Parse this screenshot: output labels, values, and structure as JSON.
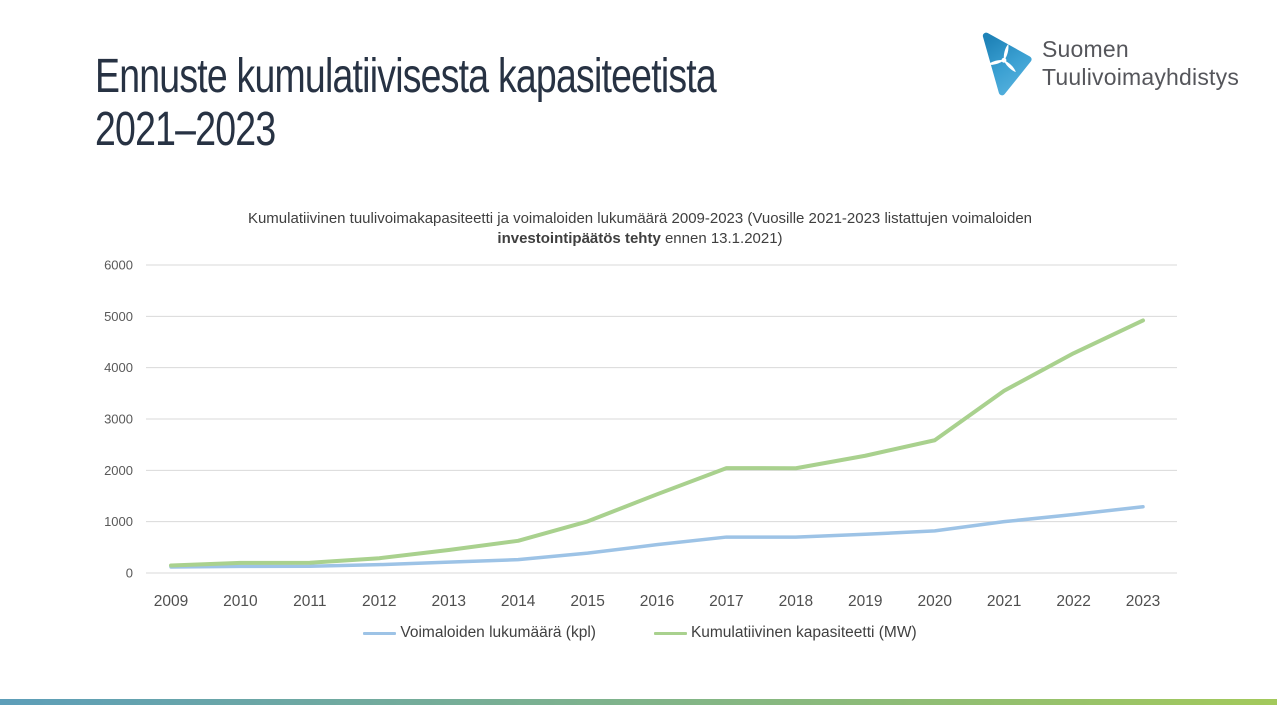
{
  "slide": {
    "title_line1": "Ennuste kumulatiivisesta kapasiteetista",
    "title_line2": "2021–2023"
  },
  "logo": {
    "org_line1": "Suomen",
    "org_line2": "Tuulivoimayhdistys"
  },
  "chart_title": {
    "line1": "Kumulatiivinen tuulivoimakapasiteetti ja voimaloiden lukumäärä 2009-2023 (Vuosille 2021-2023 listattujen voimaloiden",
    "line2_bold": "investointipäätös tehty",
    "line2_rest": " ennen 13.1.2021)"
  },
  "chart_data": {
    "type": "line",
    "title": "Kumulatiivinen tuulivoimakapasiteetti ja voimaloiden lukumäärä 2009-2023 (Vuosille 2021-2023 listattujen voimaloiden investointipäätös tehty ennen 13.1.2021)",
    "x": [
      2009,
      2010,
      2011,
      2012,
      2013,
      2014,
      2015,
      2016,
      2017,
      2018,
      2019,
      2020,
      2021,
      2022,
      2023
    ],
    "series": [
      {
        "name": "Voimaloiden lukumäärä (kpl)",
        "color": "#9dc3e6",
        "values": [
          118,
          130,
          131,
          163,
          211,
          260,
          387,
          552,
          700,
          698,
          754,
          821,
          1000,
          1140,
          1290
        ]
      },
      {
        "name": "Kumulatiivinen kapasiteetti (MW)",
        "color": "#a9d18e",
        "values": [
          147,
          197,
          199,
          288,
          448,
          627,
          1005,
          1533,
          2044,
          2041,
          2284,
          2586,
          3550,
          4280,
          4920
        ]
      }
    ],
    "ylim": [
      0,
      6000
    ],
    "yticks": [
      0,
      1000,
      2000,
      3000,
      4000,
      5000,
      6000
    ],
    "grid": true,
    "legend_position": "bottom"
  },
  "colors": {
    "title_text": "#273243",
    "logo_text": "#55565b",
    "logo_blue_dark": "#1f83b8",
    "logo_blue_light": "#54b0dd",
    "axis_label": "#595959",
    "year_label": "#4f4f4f",
    "gridline": "#d9d9d9",
    "footer_bar_left": "#5d9eb9",
    "footer_bar_right": "#a3c95b"
  }
}
